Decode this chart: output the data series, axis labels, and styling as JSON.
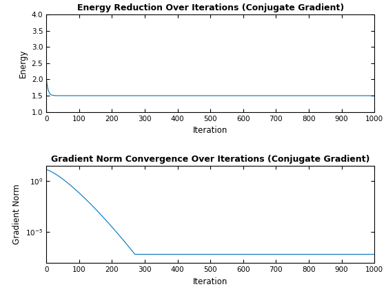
{
  "title1": "Energy Reduction Over Iterations (Conjugate Gradient)",
  "title2": "Gradient Norm Convergence Over Iterations (Conjugate Gradient)",
  "xlabel": "Iteration",
  "ylabel1": "Energy",
  "ylabel2": "Gradient Norm",
  "n_iterations": 1000,
  "energy_start": 2.05,
  "energy_converge": 1.5,
  "energy_decay_tau": 5.0,
  "grad_start": 12.0,
  "grad_floor": 7e-08,
  "grad_converge_iter": 270,
  "grad_decay_shape": 0.045,
  "line_color": "#0072BD",
  "line_width": 0.8,
  "bg_color": "#FFFFFF",
  "xlim": [
    0,
    1000
  ],
  "ylim1": [
    1,
    4
  ],
  "yticks1": [
    1.0,
    1.5,
    2.0,
    2.5,
    3.0,
    3.5,
    4.0
  ],
  "xticks": [
    0,
    100,
    200,
    300,
    400,
    500,
    600,
    700,
    800,
    900,
    1000
  ],
  "title_fontsize": 9,
  "label_fontsize": 8.5,
  "tick_fontsize": 7.5,
  "fig_width": 5.6,
  "fig_height": 4.2,
  "fig_dpi": 100
}
